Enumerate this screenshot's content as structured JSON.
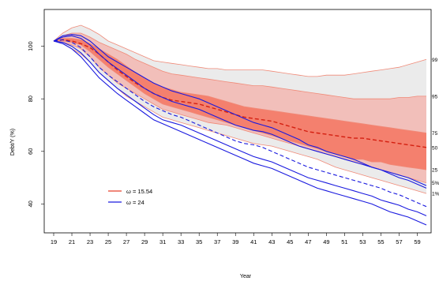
{
  "chart_data": {
    "type": "area",
    "xlabel": "Year",
    "ylabel": "Debt/Y (%)",
    "xlim": [
      19,
      60
    ],
    "ylim": [
      29,
      114
    ],
    "x_ticks": [
      "19",
      "21",
      "23",
      "25",
      "27",
      "29",
      "31",
      "33",
      "35",
      "37",
      "39",
      "41",
      "43",
      "45",
      "47",
      "49",
      "51",
      "53",
      "55",
      "57",
      "59"
    ],
    "y_ticks": [
      "40",
      "60",
      "80",
      "100"
    ],
    "x": [
      19,
      20,
      21,
      22,
      23,
      24,
      25,
      26,
      27,
      28,
      29,
      30,
      31,
      32,
      33,
      34,
      35,
      36,
      37,
      38,
      39,
      40,
      41,
      42,
      43,
      44,
      45,
      46,
      47,
      48,
      49,
      50,
      51,
      52,
      53,
      54,
      55,
      56,
      57,
      58,
      59,
      60
    ],
    "percentile_labels": [
      "99",
      "95",
      "75",
      "50",
      "25",
      "5%",
      "1%"
    ],
    "fan_series": {
      "name": "ω = 15.54",
      "color": "#e8412a",
      "p1": [
        102,
        101,
        99,
        97,
        94,
        90,
        87,
        84,
        81,
        79,
        77,
        75,
        73,
        72,
        71,
        70,
        69,
        68,
        67,
        66,
        65,
        64,
        63,
        62.5,
        62,
        61,
        60,
        59,
        58,
        57,
        55.5,
        54,
        53,
        52,
        51,
        50,
        49,
        48,
        47,
        46,
        45,
        44
      ],
      "p5": [
        102,
        101.5,
        100.5,
        99,
        96,
        92,
        89,
        86,
        84,
        82,
        80,
        78,
        76,
        75,
        74,
        73,
        72,
        71,
        70.5,
        70,
        69,
        68,
        67,
        66,
        65,
        64,
        63,
        62,
        61,
        60,
        59,
        58,
        57,
        56,
        55,
        54,
        53,
        52,
        51,
        50,
        49,
        48
      ],
      "p25": [
        102,
        102,
        101.5,
        100.5,
        98,
        95,
        92,
        89.5,
        87,
        84.5,
        82,
        80,
        78,
        77,
        76,
        75,
        74,
        73,
        72,
        71,
        70,
        69,
        68,
        67,
        66,
        65,
        64,
        63,
        62,
        61,
        60,
        59,
        58,
        57,
        57,
        56,
        56,
        55,
        54.5,
        54,
        53.5,
        53
      ],
      "p50": [
        102,
        102.5,
        102,
        101,
        99.5,
        97,
        94,
        91,
        88.5,
        86,
        84,
        82,
        80.5,
        79.5,
        79,
        78.5,
        78,
        77,
        76,
        75,
        74,
        73,
        72.5,
        72,
        71.5,
        70.5,
        69.5,
        68.5,
        67.5,
        67,
        66.5,
        66,
        65.5,
        65,
        65,
        64.5,
        64,
        63.5,
        63,
        62.5,
        62,
        61.5
      ],
      "p75": [
        102,
        103,
        103,
        102.5,
        101,
        99,
        97,
        95,
        92.5,
        90,
        88,
        86,
        84.5,
        83.5,
        82.5,
        82,
        81.5,
        81,
        80,
        79,
        78,
        77,
        76.5,
        76,
        75.5,
        75,
        74.5,
        74,
        73.5,
        73,
        72.5,
        72,
        71.5,
        71,
        70.5,
        70,
        69.5,
        69,
        68.5,
        68,
        67.5,
        67
      ],
      "p95": [
        102,
        104,
        105,
        105,
        103.5,
        101.5,
        100,
        98.5,
        97,
        95,
        93.5,
        92,
        90.5,
        89.5,
        89,
        88.5,
        88,
        87.5,
        87,
        86.5,
        86,
        85.5,
        85,
        85,
        84.5,
        84,
        83.5,
        83,
        82.5,
        82,
        81.5,
        81,
        80.5,
        80,
        80,
        80,
        80,
        80,
        80.5,
        80.5,
        81,
        81
      ],
      "p99": [
        102,
        105,
        107,
        108,
        106.5,
        104.5,
        102,
        100.5,
        99,
        97.5,
        96,
        94.5,
        94,
        93.5,
        93,
        92.5,
        92,
        91.5,
        91.5,
        91,
        91,
        91,
        91,
        91,
        90.5,
        90,
        89.5,
        89,
        88.5,
        88.5,
        89,
        89,
        89,
        89.5,
        90,
        90.5,
        91,
        91.5,
        92,
        93,
        94,
        95
      ]
    },
    "line_series": {
      "name": "ω = 24",
      "color": "#1a1adf",
      "p1": [
        102,
        101,
        99,
        96,
        92,
        88,
        85,
        82,
        79.5,
        77,
        74.5,
        72,
        70.5,
        69,
        67.5,
        66,
        64.5,
        63,
        61.5,
        60,
        58.5,
        57,
        55.5,
        54.5,
        53.5,
        52,
        50.5,
        49,
        47.5,
        46,
        45,
        44,
        43,
        42,
        41,
        40,
        38.5,
        37,
        36,
        35,
        33.5,
        32
      ],
      "p5": [
        102,
        101.5,
        100,
        97.5,
        94,
        90,
        87,
        84,
        81.5,
        79,
        76.5,
        74,
        72,
        71,
        70,
        68.5,
        67,
        65.5,
        64,
        62.5,
        61,
        59.5,
        58,
        57,
        56,
        54.5,
        53,
        51.5,
        50,
        49,
        48,
        47,
        46,
        45,
        44,
        43,
        41.5,
        40.5,
        39.5,
        38,
        37,
        35.5
      ],
      "p50": [
        102,
        102.5,
        101.5,
        99.5,
        96,
        92,
        89,
        86.5,
        84,
        81.5,
        79,
        77,
        75.5,
        74,
        73,
        71.5,
        70,
        68.5,
        67,
        65.5,
        64,
        63,
        62.5,
        61.5,
        60,
        58.5,
        57,
        55.5,
        54,
        53,
        52,
        51,
        50,
        49,
        48,
        47,
        46,
        44.5,
        43.5,
        42,
        40.5,
        39
      ],
      "p95": [
        102,
        103.5,
        104,
        103,
        100.5,
        97,
        94,
        91.5,
        89,
        86.5,
        84,
        82,
        80.5,
        79,
        78,
        77,
        76,
        74.5,
        73,
        71.5,
        70,
        69,
        68,
        67.5,
        66.5,
        65,
        63.5,
        62,
        61,
        60,
        59,
        58,
        57,
        56,
        55,
        54,
        53,
        52,
        51,
        50,
        48.5,
        47
      ],
      "p99": [
        102,
        104,
        104.5,
        104,
        102,
        99,
        96,
        94,
        92,
        90,
        88,
        86,
        84.5,
        83,
        82,
        81,
        80,
        78.5,
        77,
        75.5,
        74,
        72.5,
        71,
        70,
        69,
        67.5,
        66,
        64.5,
        62.5,
        61.5,
        60,
        59,
        58,
        57,
        55.5,
        54,
        53,
        51.5,
        50,
        49,
        47.5,
        46
      ]
    },
    "band_colors": {
      "outer": "#ebebeb",
      "middle": "#f2bfba",
      "inner": "#f4806e",
      "edge": "#f08a78"
    },
    "legend": [
      {
        "label": "ω = 15.54",
        "color": "#e8412a"
      },
      {
        "label": "ω = 24",
        "color": "#1a1adf"
      }
    ]
  }
}
